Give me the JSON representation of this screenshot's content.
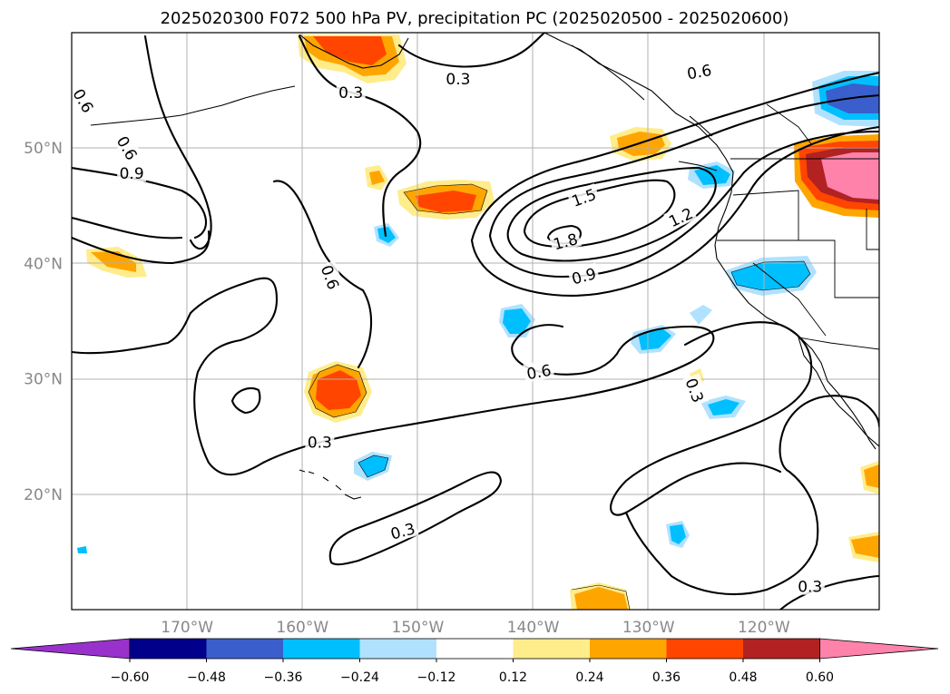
{
  "title": "2025020300 F072 500 hPa PV, precipitation PC (2025020500 - 2025020600)",
  "map": {
    "lon_range": [
      -180,
      -110
    ],
    "lat_range": [
      10,
      60
    ],
    "lon_ticks": [
      {
        "lon": -170,
        "label": "170°W"
      },
      {
        "lon": -160,
        "label": "160°W"
      },
      {
        "lon": -150,
        "label": "150°W"
      },
      {
        "lon": -140,
        "label": "140°W"
      },
      {
        "lon": -130,
        "label": "130°W"
      },
      {
        "lon": -120,
        "label": "120°W"
      }
    ],
    "lat_ticks": [
      {
        "lat": 20,
        "label": "20°N"
      },
      {
        "lat": 30,
        "label": "30°N"
      },
      {
        "lat": 40,
        "label": "40°N"
      },
      {
        "lat": 50,
        "label": "50°N"
      }
    ],
    "grid": true
  },
  "contour_labels": [
    {
      "text": "0.3",
      "lon": -146.5,
      "lat": 56.0
    },
    {
      "text": "0.3",
      "lon": -155.8,
      "lat": 54.8
    },
    {
      "text": "0.6",
      "lon": -179.0,
      "lat": 54.1,
      "rot": 60
    },
    {
      "text": "0.6",
      "lon": -175.2,
      "lat": 50.0,
      "rot": 60
    },
    {
      "text": "0.9",
      "lon": -174.8,
      "lat": 47.8
    },
    {
      "text": "1.5",
      "lon": -135.6,
      "lat": 45.7,
      "rot": -20
    },
    {
      "text": "1.2",
      "lon": -127.2,
      "lat": 44.0,
      "rot": -25
    },
    {
      "text": "1.8",
      "lon": -137.2,
      "lat": 41.9,
      "rot": -15
    },
    {
      "text": "0.9",
      "lon": -135.6,
      "lat": 38.9,
      "rot": -15
    },
    {
      "text": "0.6",
      "lon": -157.6,
      "lat": 38.8,
      "rot": 70
    },
    {
      "text": "0.6",
      "lon": -125.6,
      "lat": 56.6,
      "rot": -10
    },
    {
      "text": "0.6",
      "lon": -139.5,
      "lat": 30.6,
      "rot": -10
    },
    {
      "text": "0.3",
      "lon": -126.0,
      "lat": 29.0,
      "rot": 70
    },
    {
      "text": "0.3",
      "lon": -158.5,
      "lat": 24.5
    },
    {
      "text": "0.3",
      "lon": -151.3,
      "lat": 16.8,
      "rot": -15
    },
    {
      "text": "0.3",
      "lon": -116.0,
      "lat": 12.0
    }
  ],
  "colorbar": {
    "colors": [
      "#9932cc",
      "#00008b",
      "#3a5fcd",
      "#00bfff",
      "#b0e2ff",
      "#ffffff",
      "#ffec8b",
      "#ffa500",
      "#ff4500",
      "#b22222",
      "#ff82ab"
    ],
    "labels": [
      "−0.60",
      "−0.48",
      "−0.36",
      "−0.24",
      "−0.12",
      "0.12",
      "0.24",
      "0.36",
      "0.48",
      "0.60"
    ]
  }
}
